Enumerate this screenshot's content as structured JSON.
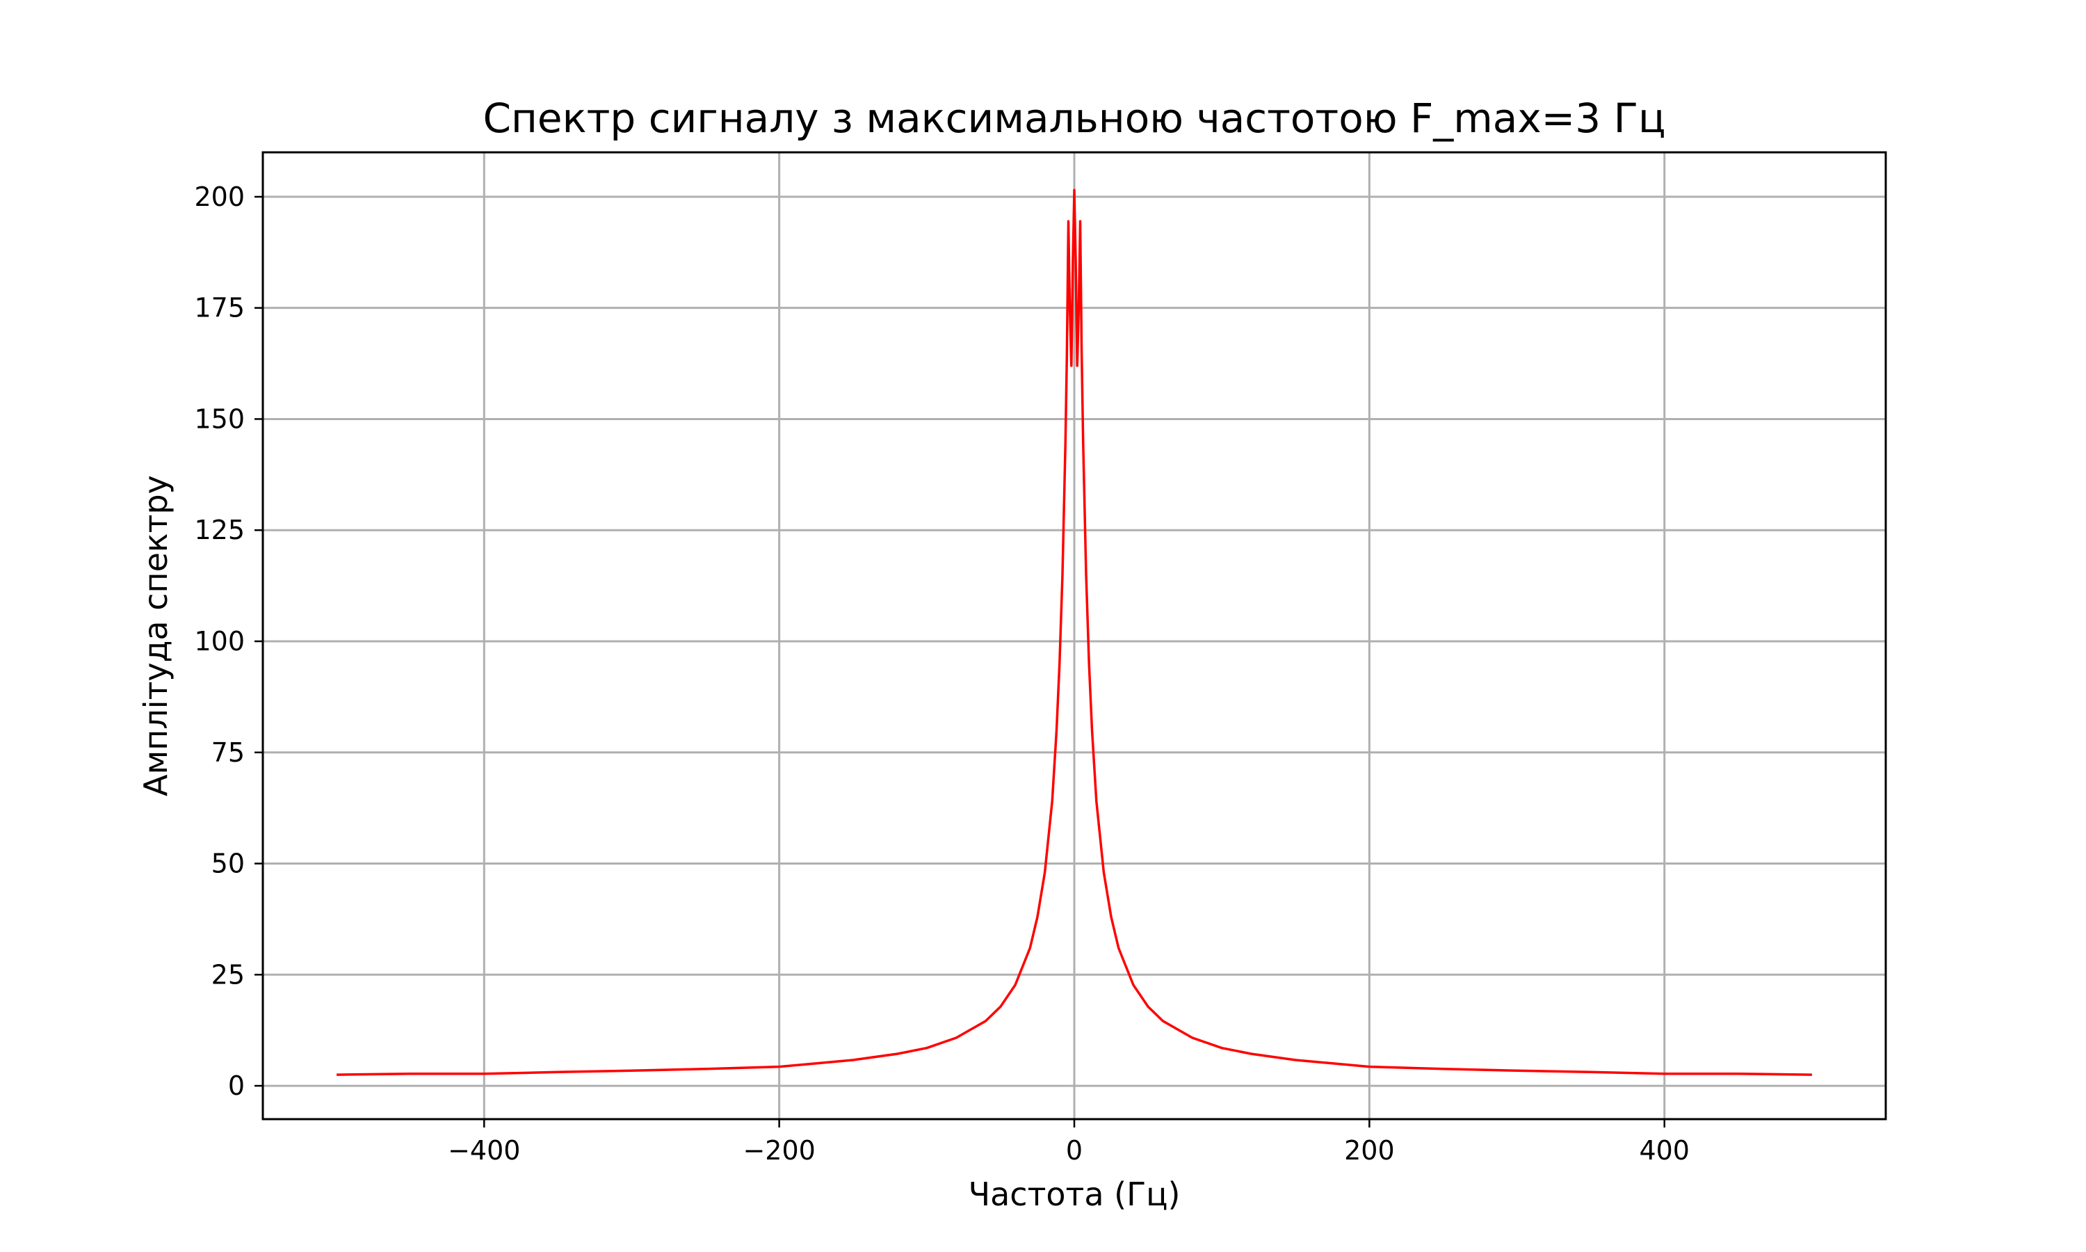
{
  "chart_data": {
    "type": "line",
    "title": "Спектр сигналу з максимальною частотою F_max=3 Гц",
    "xlabel": "Частота (Гц)",
    "ylabel": "Амплітуда спектру",
    "xlim": [
      -550,
      550
    ],
    "ylim": [
      -7.5,
      210
    ],
    "xticks": [
      -400,
      -200,
      0,
      200,
      400
    ],
    "xtick_labels": [
      "−400",
      "−200",
      "0",
      "200",
      "400"
    ],
    "yticks": [
      0,
      25,
      50,
      75,
      100,
      125,
      150,
      175,
      200
    ],
    "ytick_labels": [
      "0",
      "25",
      "50",
      "75",
      "100",
      "125",
      "150",
      "175",
      "200"
    ],
    "grid": true,
    "series": [
      {
        "color": "#ff0000",
        "x": [
          -500,
          -450,
          -400,
          -350,
          -300,
          -250,
          -200,
          -150,
          -120,
          -100,
          -80,
          -60,
          -50,
          -40,
          -30,
          -25,
          -20,
          -15,
          -12,
          -10,
          -8,
          -6,
          -5,
          -4,
          -3,
          -2,
          -1,
          0,
          1,
          2,
          3,
          4,
          5,
          6,
          8,
          10,
          12,
          15,
          20,
          25,
          30,
          40,
          50,
          60,
          80,
          100,
          120,
          150,
          200,
          250,
          300,
          350,
          400,
          450,
          500
        ],
        "y": [
          2.5,
          2.7,
          2.7,
          3.1,
          3.4,
          3.8,
          4.3,
          5.8,
          7.2,
          8.5,
          10.8,
          14.6,
          17.8,
          22.7,
          31.0,
          38.0,
          48.0,
          64.0,
          80.0,
          95.0,
          115.0,
          145.0,
          165.0,
          194.5,
          175.0,
          162.0,
          185.0,
          201.5,
          185.0,
          162.0,
          175.0,
          194.5,
          165.0,
          145.0,
          115.0,
          95.0,
          80.0,
          64.0,
          48.0,
          38.0,
          31.0,
          22.7,
          17.8,
          14.6,
          10.8,
          8.5,
          7.2,
          5.8,
          4.3,
          3.8,
          3.4,
          3.1,
          2.7,
          2.7,
          2.5
        ]
      }
    ]
  }
}
